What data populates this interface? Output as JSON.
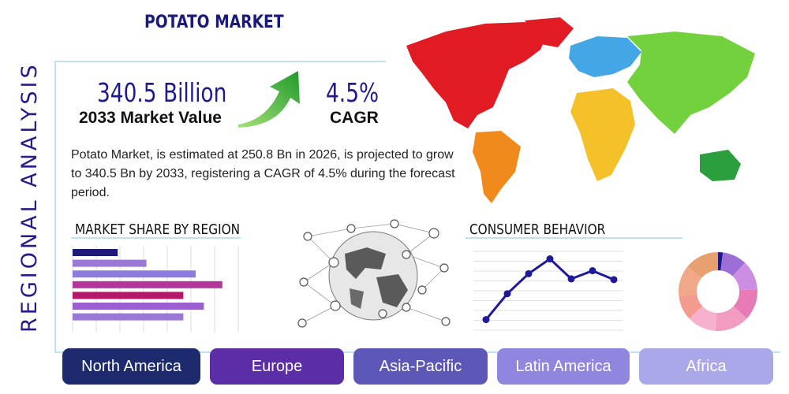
{
  "header": {
    "side_title": "REGIONAL ANALYSIS",
    "title": "POTATO MARKET"
  },
  "kpis": {
    "market_value": {
      "value": "340.5 Billion",
      "label": "2033 Market Value"
    },
    "cagr": {
      "value": "4.5%",
      "label": "CAGR"
    }
  },
  "description": "Potato Market, is estimated at 250.8 Bn in 2026, is projected to grow to 340.5 Bn by 2033, registering a CAGR of 4.5% during the forecast period.",
  "sections": {
    "market_share_title": "MARKET SHARE BY REGION",
    "consumer_behavior_title": "CONSUMER BEHAVIOR"
  },
  "tabs": [
    {
      "label": "North America",
      "color": "#1e2a6e"
    },
    {
      "label": "Europe",
      "color": "#5b2ea6"
    },
    {
      "label": "Asia-Pacific",
      "color": "#5d57b8"
    },
    {
      "label": "Latin America",
      "color": "#8f86e0"
    },
    {
      "label": "Africa",
      "color": "#aaa8e8"
    }
  ],
  "chart_data": [
    {
      "type": "bar",
      "orientation": "horizontal",
      "values": [
        0.22,
        0.36,
        0.6,
        0.73,
        0.54,
        0.64,
        0.54
      ],
      "colors": [
        "#1e1a7a",
        "#9b77d6",
        "#8e7be0",
        "#b5369a",
        "#b5176a",
        "#9b5fcf",
        "#9b77d6"
      ],
      "grid": true
    },
    {
      "type": "line",
      "x": [
        1,
        2,
        3,
        4,
        5,
        6,
        7
      ],
      "y": [
        0.1,
        0.45,
        0.72,
        0.92,
        0.65,
        0.76,
        0.64
      ],
      "color": "#1e1a9a",
      "grid": true
    },
    {
      "type": "pie",
      "style": "donut",
      "values": [
        2,
        10,
        12,
        13,
        14,
        12,
        10,
        13,
        14
      ],
      "colors": [
        "#1e1a8c",
        "#9b6fd6",
        "#cc8ee0",
        "#e77bb5",
        "#f19cc0",
        "#f6b2cc",
        "#f39b8f",
        "#f0a888",
        "#e8a070"
      ]
    }
  ]
}
